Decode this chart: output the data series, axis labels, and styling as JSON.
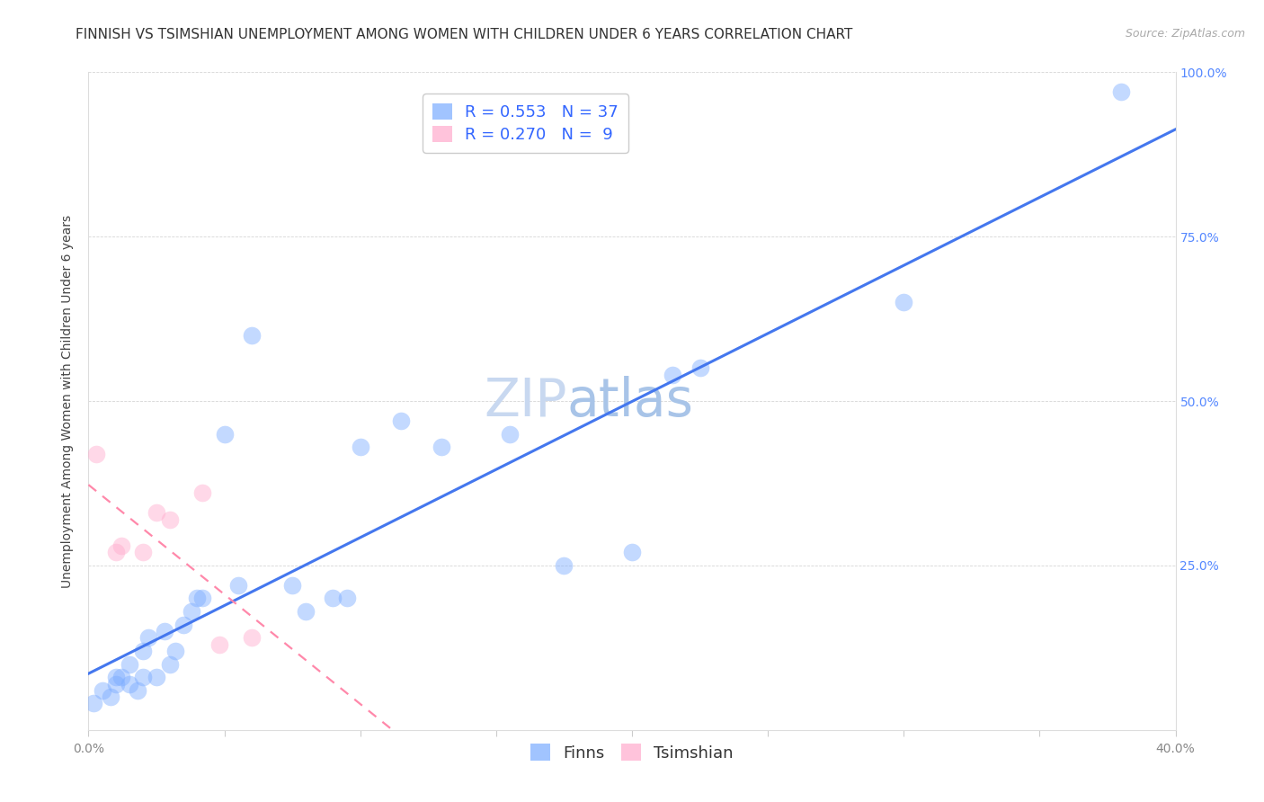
{
  "title": "FINNISH VS TSIMSHIAN UNEMPLOYMENT AMONG WOMEN WITH CHILDREN UNDER 6 YEARS CORRELATION CHART",
  "source": "Source: ZipAtlas.com",
  "ylabel": "Unemployment Among Women with Children Under 6 years",
  "xlim": [
    0.0,
    0.4
  ],
  "ylim": [
    0.0,
    1.0
  ],
  "xticks": [
    0.0,
    0.05,
    0.1,
    0.15,
    0.2,
    0.25,
    0.3,
    0.35,
    0.4
  ],
  "xticklabels": [
    "0.0%",
    "",
    "",
    "",
    "",
    "",
    "",
    "",
    "40.0%"
  ],
  "yticks": [
    0.0,
    0.25,
    0.5,
    0.75,
    1.0
  ],
  "yticklabels_right": [
    "",
    "25.0%",
    "50.0%",
    "75.0%",
    "100.0%"
  ],
  "finns_R": 0.553,
  "finns_N": 37,
  "tsimshian_R": 0.27,
  "tsimshian_N": 9,
  "finns_color": "#7aabff",
  "tsimshian_color": "#ffaacc",
  "finns_line_color": "#4477ee",
  "tsimshian_line_color": "#ff88aa",
  "background_color": "#ffffff",
  "watermark_zip": "ZIP",
  "watermark_atlas": "atlas",
  "finns_x": [
    0.002,
    0.005,
    0.008,
    0.01,
    0.01,
    0.012,
    0.015,
    0.015,
    0.018,
    0.02,
    0.02,
    0.022,
    0.025,
    0.028,
    0.03,
    0.032,
    0.035,
    0.038,
    0.04,
    0.042,
    0.05,
    0.055,
    0.06,
    0.075,
    0.08,
    0.09,
    0.095,
    0.1,
    0.115,
    0.13,
    0.155,
    0.175,
    0.2,
    0.215,
    0.225,
    0.3,
    0.38
  ],
  "finns_y": [
    0.04,
    0.06,
    0.05,
    0.07,
    0.08,
    0.08,
    0.07,
    0.1,
    0.06,
    0.08,
    0.12,
    0.14,
    0.08,
    0.15,
    0.1,
    0.12,
    0.16,
    0.18,
    0.2,
    0.2,
    0.45,
    0.22,
    0.6,
    0.22,
    0.18,
    0.2,
    0.2,
    0.43,
    0.47,
    0.43,
    0.45,
    0.25,
    0.27,
    0.54,
    0.55,
    0.65,
    0.97
  ],
  "tsimshian_x": [
    0.003,
    0.01,
    0.012,
    0.02,
    0.025,
    0.03,
    0.042,
    0.048,
    0.06
  ],
  "tsimshian_y": [
    0.42,
    0.27,
    0.28,
    0.27,
    0.33,
    0.32,
    0.36,
    0.13,
    0.14
  ],
  "title_fontsize": 11,
  "axis_label_fontsize": 10,
  "tick_fontsize": 10,
  "legend_fontsize": 13,
  "watermark_fontsize_zip": 42,
  "watermark_fontsize_atlas": 42,
  "watermark_color_zip": "#c8d8f0",
  "watermark_color_atlas": "#a8c4e8",
  "scatter_size": 200,
  "scatter_alpha": 0.45,
  "scatter_linewidth": 1.0,
  "scatter_edgecolor": "#aabbdd"
}
